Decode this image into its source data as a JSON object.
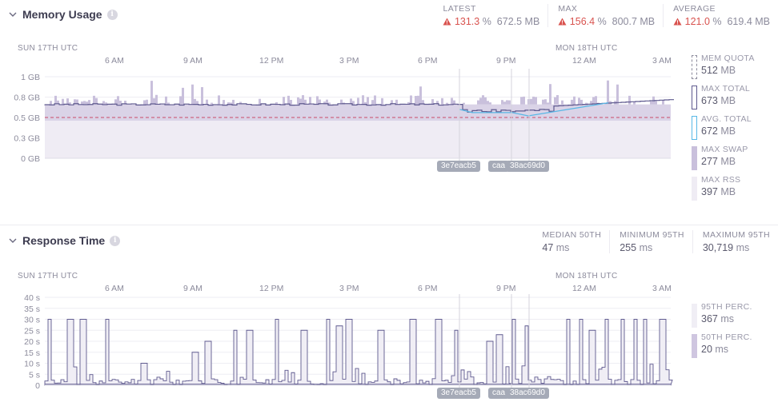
{
  "memory": {
    "title": "Memory Usage",
    "info_glyph": "i",
    "stats": [
      {
        "label": "LATEST",
        "pct": "131.3",
        "pct_unit": "%",
        "value": "672.5 MB"
      },
      {
        "label": "MAX",
        "pct": "156.4",
        "pct_unit": "%",
        "value": "800.7 MB"
      },
      {
        "label": "AVERAGE",
        "pct": "121.0",
        "pct_unit": "%",
        "value": "619.4 MB"
      }
    ],
    "y_ticks": [
      "1 GB",
      "0.8 GB",
      "0.5 GB",
      "0.3 GB",
      "0 GB"
    ],
    "legend": [
      {
        "label": "MEM QUOTA",
        "value": "512",
        "unit": "MB"
      },
      {
        "label": "MAX TOTAL",
        "value": "673",
        "unit": "MB"
      },
      {
        "label": "AVG. TOTAL",
        "value": "672",
        "unit": "MB"
      },
      {
        "label": "MAX SWAP",
        "value": "277",
        "unit": "MB"
      },
      {
        "label": "MAX RSS",
        "value": "397",
        "unit": "MB"
      }
    ]
  },
  "response": {
    "title": "Response Time",
    "info_glyph": "i",
    "stats": [
      {
        "label": "MEDIAN 50TH",
        "value": "47",
        "unit": "ms"
      },
      {
        "label": "MINIMUM 95TH",
        "value": "255",
        "unit": "ms"
      },
      {
        "label": "MAXIMUM 95TH",
        "value": "30,719",
        "unit": "ms"
      }
    ],
    "y_ticks": [
      "40 s",
      "35 s",
      "30 s",
      "25 s",
      "20 s",
      "15 s",
      "10 s",
      "5 s",
      "0"
    ],
    "legend": [
      {
        "label": "95TH PERC.",
        "value": "367",
        "unit": "ms"
      },
      {
        "label": "50TH PERC.",
        "value": "20",
        "unit": "ms"
      }
    ]
  },
  "time_axis": {
    "day1": "SUN 17TH UTC",
    "day2": "MON 18TH UTC",
    "hours": [
      "6 AM",
      "9 AM",
      "12 PM",
      "3 PM",
      "6 PM",
      "9 PM",
      "12 AM",
      "3 AM"
    ]
  },
  "deploys": [
    "3e7eacb5",
    "caa",
    "38ac69d0"
  ],
  "colors": {
    "quota": "#c94b6a",
    "max_total": "#5f5a8f",
    "avg_total": "#58b8e6",
    "swap": "#c9c0dc",
    "rss": "#efecf4",
    "p95": "#f0eef5",
    "p50": "#cfc6e0",
    "warn": "#d9534f"
  },
  "chart_data": [
    {
      "type": "area",
      "title": "Memory Usage",
      "ylim": [
        0,
        1
      ],
      "y_unit": "GB",
      "series": [
        {
          "name": "MEM QUOTA",
          "value": 0.5
        },
        {
          "name": "MAX TOTAL",
          "value": 0.66
        },
        {
          "name": "AVG. TOTAL",
          "value": 0.66
        },
        {
          "name": "MAX SWAP",
          "value": 0.27
        },
        {
          "name": "MAX RSS",
          "value": 0.39
        }
      ]
    },
    {
      "type": "area",
      "title": "Response Time",
      "ylim": [
        0,
        40
      ],
      "y_unit": "s",
      "series": [
        {
          "name": "95TH PERC.",
          "peak": 30
        },
        {
          "name": "50TH PERC.",
          "value": 0.02
        }
      ]
    }
  ]
}
